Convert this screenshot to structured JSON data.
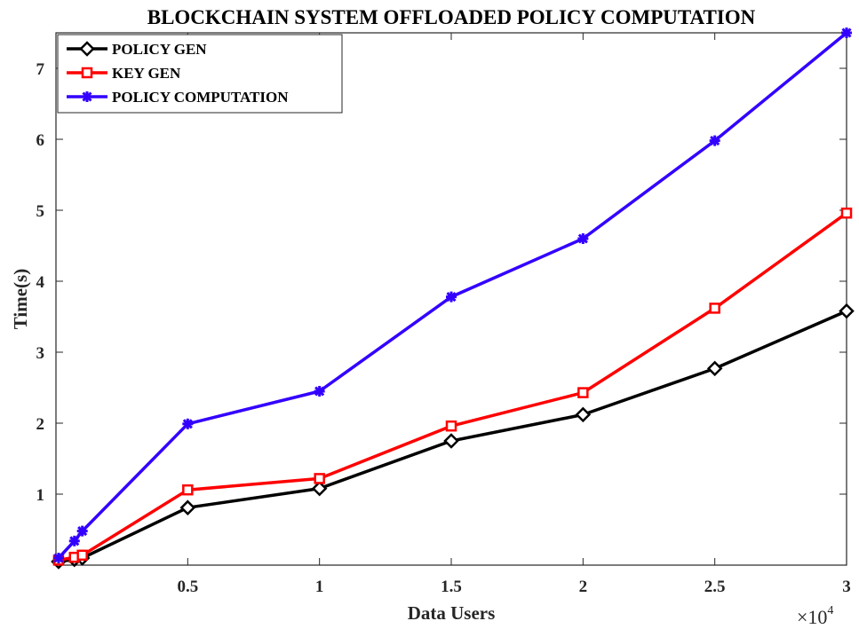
{
  "chart_data": {
    "type": "line",
    "title": "BLOCKCHAIN SYSTEM OFFLOADED POLICY COMPUTATION",
    "xlabel": "Data Users",
    "ylabel": "Time(s)",
    "x_multiplier": {
      "base": "×10",
      "exponent": "4"
    },
    "xlim": [
      0,
      30000
    ],
    "ylim": [
      0,
      7.5
    ],
    "x_ticks": [
      5000,
      10000,
      15000,
      20000,
      25000,
      30000
    ],
    "x_tick_labels": [
      "0.5",
      "1",
      "1.5",
      "2",
      "2.5",
      "3"
    ],
    "y_ticks": [
      1,
      2,
      3,
      4,
      5,
      6,
      7
    ],
    "y_tick_labels": [
      "1",
      "2",
      "3",
      "4",
      "5",
      "6",
      "7"
    ],
    "grid": false,
    "legend_position": "top-left",
    "x": [
      100,
      700,
      1000,
      5000,
      10000,
      15000,
      20000,
      25000,
      30000
    ],
    "series": [
      {
        "name": "POLICY GEN",
        "color": "#000000",
        "marker": "diamond",
        "values": [
          0.05,
          0.08,
          0.1,
          0.81,
          1.08,
          1.75,
          2.12,
          2.77,
          3.58
        ]
      },
      {
        "name": "KEY GEN",
        "color": "#ff0000",
        "marker": "square",
        "values": [
          0.07,
          0.11,
          0.14,
          1.06,
          1.22,
          1.96,
          2.43,
          3.62,
          4.96
        ]
      },
      {
        "name": "POLICY COMPUTATION",
        "color": "#3300ff",
        "marker": "star",
        "values": [
          0.1,
          0.34,
          0.48,
          1.99,
          2.45,
          3.78,
          4.6,
          5.98,
          7.5
        ]
      }
    ]
  }
}
